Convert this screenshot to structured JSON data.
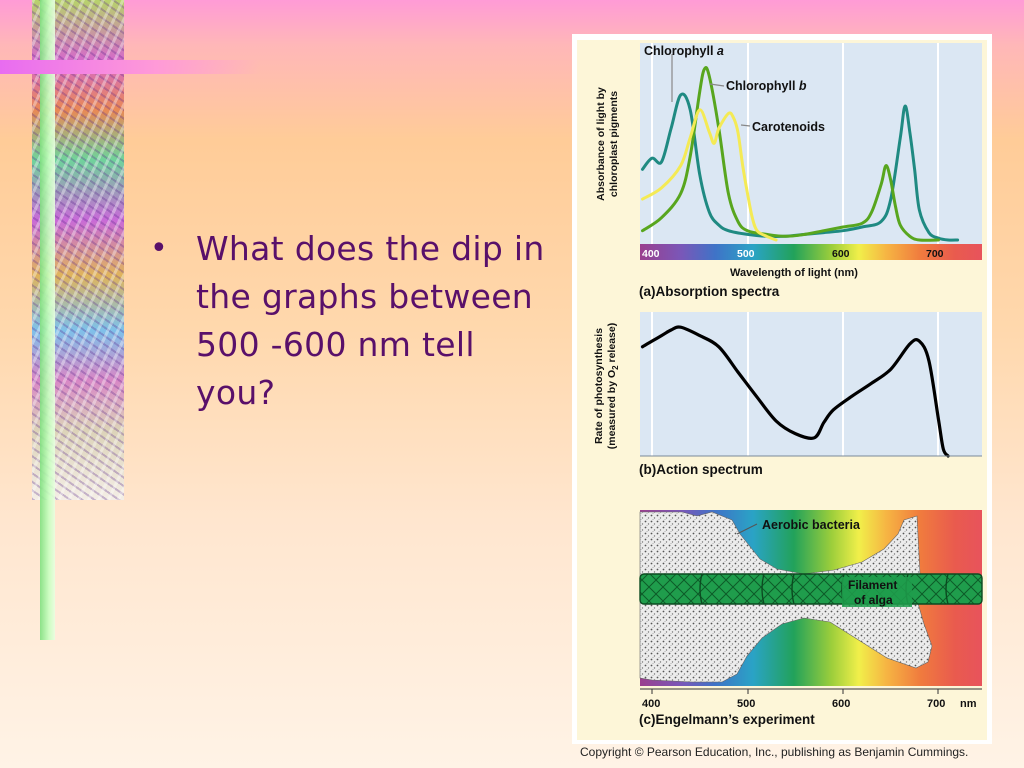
{
  "slide": {
    "bullet": "What does the dip in the graphs between 500 -600 nm tell you?",
    "copyright": "Copyright © Pearson Education, Inc., publishing as Benjamin Cummings."
  },
  "panel_a": {
    "ylabel_line1": "Absorbance of light by",
    "ylabel_line2": "chloroplast pigments",
    "xlabel": "Wavelength of light (nm)",
    "caption_letter": "(a)",
    "caption": "Absorption spectra",
    "labels": {
      "chl_a_main": "Chlorophyll ",
      "chl_a_italic": "a",
      "chl_b_main": "Chlorophyll ",
      "chl_b_italic": "b",
      "carotenoids": "Carotenoids"
    },
    "ticks": [
      "400",
      "500",
      "600",
      "700"
    ]
  },
  "panel_b": {
    "ylabel_line1": "Rate of photosynthesis",
    "ylabel_line2": "(measured by O",
    "ylabel_sub": "2",
    "ylabel_line2_end": " release)",
    "caption_letter": "(b)",
    "caption": "Action spectrum"
  },
  "panel_c": {
    "bacteria_label": "Aerobic bacteria",
    "filament_line1": "Filament",
    "filament_line2": "of alga",
    "caption_letter": "(c)",
    "caption": "Engelmann’s experiment",
    "ticks": [
      "400",
      "500",
      "600",
      "700"
    ],
    "unit": "nm"
  },
  "chart_data": [
    {
      "type": "line",
      "x_units": "nm",
      "xlim": [
        390,
        740
      ],
      "x_ticks": [
        400,
        500,
        600,
        700
      ],
      "series": [
        {
          "name": "Chlorophyll a",
          "color": "#1f8a82",
          "x": [
            390,
            400,
            410,
            420,
            430,
            440,
            450,
            460,
            470,
            480,
            500,
            520,
            540,
            560,
            580,
            600,
            620,
            640,
            650,
            660,
            665,
            670,
            675,
            680,
            690,
            700,
            710,
            720
          ],
          "values": [
            0.38,
            0.44,
            0.42,
            0.6,
            0.78,
            0.7,
            0.35,
            0.15,
            0.08,
            0.05,
            0.03,
            0.02,
            0.02,
            0.03,
            0.04,
            0.05,
            0.07,
            0.1,
            0.22,
            0.55,
            0.72,
            0.58,
            0.38,
            0.16,
            0.04,
            0.01,
            0.0,
            0.0
          ]
        },
        {
          "name": "Chlorophyll b",
          "color": "#58a61e",
          "x": [
            390,
            410,
            430,
            440,
            450,
            455,
            460,
            470,
            480,
            490,
            500,
            520,
            540,
            560,
            580,
            600,
            620,
            630,
            640,
            645,
            650,
            655,
            660,
            670,
            680,
            700
          ],
          "values": [
            0.05,
            0.12,
            0.25,
            0.45,
            0.8,
            0.92,
            0.88,
            0.6,
            0.25,
            0.1,
            0.05,
            0.03,
            0.02,
            0.03,
            0.05,
            0.07,
            0.09,
            0.15,
            0.3,
            0.4,
            0.32,
            0.18,
            0.08,
            0.02,
            0.0,
            0.0
          ]
        },
        {
          "name": "Carotenoids",
          "color": "#f4ea55",
          "x": [
            390,
            410,
            430,
            440,
            450,
            460,
            465,
            470,
            480,
            485,
            490,
            495,
            500,
            505,
            510,
            520,
            530
          ],
          "values": [
            0.22,
            0.28,
            0.4,
            0.55,
            0.7,
            0.58,
            0.52,
            0.6,
            0.68,
            0.66,
            0.58,
            0.4,
            0.25,
            0.12,
            0.05,
            0.02,
            0.0
          ]
        }
      ]
    },
    {
      "type": "line",
      "x_units": "nm",
      "xlim": [
        390,
        740
      ],
      "series": [
        {
          "name": "Rate of photosynthesis",
          "color": "#000000",
          "x": [
            390,
            410,
            420,
            430,
            450,
            470,
            490,
            510,
            530,
            550,
            570,
            580,
            590,
            610,
            630,
            650,
            670,
            680,
            690,
            700,
            705,
            710
          ],
          "values": [
            0.78,
            0.86,
            0.9,
            0.92,
            0.86,
            0.78,
            0.6,
            0.42,
            0.25,
            0.16,
            0.13,
            0.24,
            0.33,
            0.43,
            0.52,
            0.62,
            0.8,
            0.82,
            0.68,
            0.26,
            0.05,
            0.0
          ]
        }
      ]
    }
  ]
}
